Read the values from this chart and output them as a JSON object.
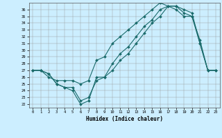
{
  "title": "",
  "xlabel": "Humidex (Indice chaleur)",
  "bg_color": "#cceeff",
  "line_color": "#1a6b6b",
  "xlim": [
    -0.5,
    23.5
  ],
  "ylim": [
    21.5,
    37.0
  ],
  "xticks": [
    0,
    1,
    2,
    3,
    4,
    5,
    6,
    7,
    8,
    9,
    10,
    11,
    12,
    13,
    14,
    15,
    16,
    17,
    18,
    19,
    20,
    21,
    22,
    23
  ],
  "yticks": [
    22,
    23,
    24,
    25,
    26,
    27,
    28,
    29,
    30,
    31,
    32,
    33,
    34,
    35,
    36
  ],
  "line1_x": [
    0,
    1,
    2,
    3,
    4,
    5,
    6,
    7,
    8,
    9,
    10,
    11,
    12,
    13,
    14,
    15,
    16,
    17,
    18,
    19,
    20,
    21,
    22,
    23
  ],
  "line1_y": [
    27.0,
    27.0,
    26.5,
    25.0,
    24.5,
    24.0,
    22.0,
    22.5,
    26.0,
    26.0,
    28.0,
    29.5,
    30.5,
    32.0,
    33.5,
    34.5,
    36.0,
    36.5,
    36.0,
    35.0,
    35.0,
    31.0,
    27.0,
    27.0
  ],
  "line2_x": [
    0,
    1,
    2,
    3,
    4,
    5,
    6,
    7,
    8,
    9,
    10,
    11,
    12,
    13,
    14,
    15,
    16,
    17,
    18,
    19,
    20,
    21,
    22,
    23
  ],
  "line2_y": [
    27.0,
    27.0,
    26.0,
    25.5,
    25.5,
    25.5,
    25.0,
    25.5,
    28.5,
    29.0,
    31.0,
    32.0,
    33.0,
    34.0,
    35.0,
    36.0,
    37.0,
    36.5,
    36.5,
    36.0,
    35.5,
    31.0,
    27.0,
    27.0
  ],
  "line3_x": [
    0,
    1,
    2,
    3,
    4,
    5,
    6,
    7,
    8,
    9,
    10,
    11,
    12,
    13,
    14,
    15,
    16,
    17,
    18,
    19,
    20,
    21,
    22,
    23
  ],
  "line3_y": [
    27.0,
    27.0,
    26.5,
    25.0,
    24.5,
    24.5,
    22.5,
    23.0,
    25.5,
    26.0,
    27.0,
    28.5,
    29.5,
    31.0,
    32.5,
    34.0,
    35.0,
    36.5,
    36.5,
    35.5,
    35.0,
    31.5,
    27.0,
    27.0
  ]
}
